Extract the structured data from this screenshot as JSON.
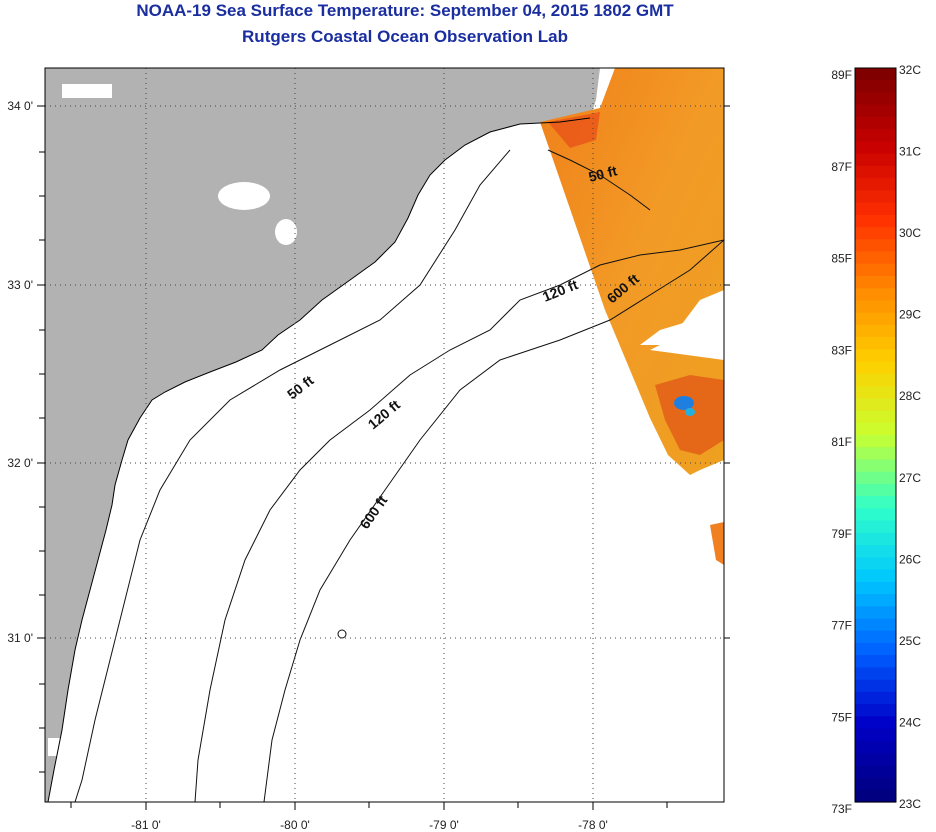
{
  "header": {
    "title": "NOAA-19 Sea Surface Temperature:  September 04, 2015 1802 GMT",
    "subtitle": "Rutgers Coastal Ocean Observation Lab"
  },
  "axes": {
    "x_ticks": [
      "-81 0'",
      "-80 0'",
      "-79 0'",
      "-78 0'"
    ],
    "y_ticks": [
      "34 0'",
      "33 0'",
      "32 0'",
      "31 0'"
    ]
  },
  "contours": {
    "offshore": [
      "50 ft",
      "120 ft",
      "600 ft"
    ],
    "nearshore": [
      "50 ft",
      "120 ft",
      "600 ft"
    ]
  },
  "colorbar": {
    "fahrenheit": [
      "89F",
      "87F",
      "85F",
      "83F",
      "81F",
      "79F",
      "77F",
      "75F",
      "73F"
    ],
    "celsius": [
      "32C",
      "31C",
      "30C",
      "29C",
      "28C",
      "27C",
      "26C",
      "25C",
      "24C",
      "23C"
    ],
    "colors": [
      "#800000",
      "#c80000",
      "#ff3000",
      "#ff8a00",
      "#ffd000",
      "#c8ff30",
      "#30ffc8",
      "#00c8ff",
      "#0060ff",
      "#0000c8",
      "#000080"
    ]
  },
  "colors": {
    "land": "#b2b2b2",
    "ocean": "#ffffff",
    "title": "#1a2ea0",
    "sst_warm": "#f0901e"
  }
}
